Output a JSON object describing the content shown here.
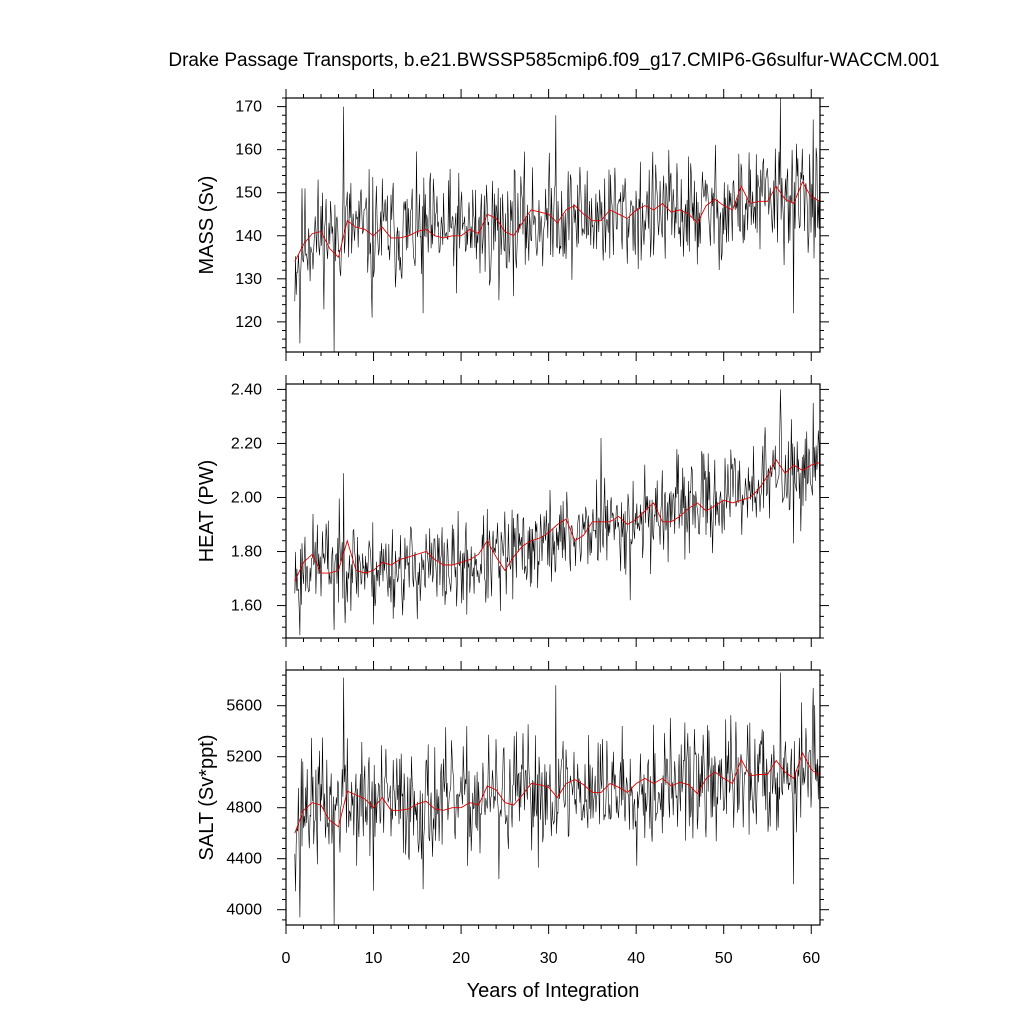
{
  "title": "Drake Passage Transports, b.e21.BWSSP585cmip6.f09_g17.CMIP6-G6sulfur-WACCM.001",
  "colors": {
    "monthly": "#000000",
    "annual": "#e00000"
  },
  "chart_data": [
    {
      "type": "line",
      "id": "mass",
      "ylabel": "MASS (Sv)",
      "xlabel": "",
      "xlim": [
        0,
        61
      ],
      "ylim": [
        113,
        172
      ],
      "xticks": [
        0,
        10,
        20,
        30,
        40,
        50,
        60
      ],
      "yticks": [
        120,
        130,
        140,
        150,
        160,
        170
      ],
      "ytick_labels": [
        "120",
        "130",
        "140",
        "150",
        "160",
        "170"
      ],
      "monthly_x_step": 0.0833,
      "monthly_x_start": 1.0,
      "monthly_noise": 6.5,
      "monthly_seed": 11,
      "monthly_trend": {
        "x": [
          1,
          2,
          6,
          10,
          20,
          30,
          40,
          50,
          60,
          61
        ],
        "y": [
          133,
          139,
          142,
          141,
          141,
          144,
          145,
          146,
          150,
          148
        ]
      },
      "monthly_spikes": [
        [
          1.6,
          115
        ],
        [
          5.5,
          113
        ],
        [
          6.6,
          170
        ],
        [
          9.8,
          121
        ],
        [
          15.7,
          122
        ],
        [
          24.3,
          125
        ],
        [
          30.8,
          168
        ],
        [
          56.5,
          172
        ],
        [
          58.0,
          122
        ],
        [
          60.2,
          167
        ]
      ],
      "annual": {
        "x": [
          1,
          2,
          3,
          4,
          5,
          6,
          7,
          8,
          9,
          10,
          11,
          12,
          13,
          14,
          15,
          16,
          17,
          18,
          19,
          20,
          21,
          22,
          23,
          24,
          25,
          26,
          27,
          28,
          29,
          30,
          31,
          32,
          33,
          34,
          35,
          36,
          37,
          38,
          39,
          40,
          41,
          42,
          43,
          44,
          45,
          46,
          47,
          48,
          49,
          50,
          51,
          52,
          53,
          54,
          55,
          56,
          57,
          58,
          59,
          60,
          61
        ],
        "y": [
          134,
          138,
          140.5,
          141,
          137,
          135,
          143.5,
          142,
          141.5,
          140,
          142,
          139.5,
          139.5,
          140,
          141,
          141.5,
          140,
          139.5,
          140,
          140,
          141.5,
          140.5,
          145,
          144,
          141,
          140,
          143,
          146,
          145.5,
          145,
          143,
          146,
          147,
          145,
          143.5,
          143.5,
          146,
          145,
          144,
          146,
          147,
          146,
          147.5,
          145.5,
          146,
          145,
          143,
          147,
          148.5,
          147,
          146,
          151.5,
          147.5,
          148,
          148,
          151.5,
          148.5,
          147.5,
          152.5,
          149,
          148
        ]
      }
    },
    {
      "type": "line",
      "id": "heat",
      "ylabel": "HEAT (PW)",
      "xlabel": "",
      "xlim": [
        0,
        61
      ],
      "ylim": [
        1.48,
        2.42
      ],
      "xticks": [
        0,
        10,
        20,
        30,
        40,
        50,
        60
      ],
      "yticks": [
        1.6,
        1.8,
        2.0,
        2.2,
        2.4
      ],
      "ytick_labels": [
        "1.60",
        "1.80",
        "2.00",
        "2.20",
        "2.40"
      ],
      "monthly_x_step": 0.0833,
      "monthly_x_start": 1.0,
      "monthly_noise": 0.085,
      "monthly_seed": 23,
      "monthly_trend": {
        "x": [
          1,
          2,
          6,
          10,
          20,
          25,
          30,
          40,
          50,
          57,
          61
        ],
        "y": [
          1.7,
          1.76,
          1.76,
          1.74,
          1.74,
          1.78,
          1.84,
          1.92,
          2.0,
          2.1,
          2.1
        ]
      },
      "monthly_spikes": [
        [
          1.6,
          1.49
        ],
        [
          5.5,
          1.51
        ],
        [
          6.6,
          2.09
        ],
        [
          10.0,
          1.53
        ],
        [
          24.5,
          1.58
        ],
        [
          36.0,
          2.22
        ],
        [
          39.3,
          1.62
        ],
        [
          56.5,
          2.4
        ],
        [
          58.0,
          1.83
        ],
        [
          60.2,
          2.35
        ]
      ],
      "annual": {
        "x": [
          1,
          2,
          3,
          4,
          5,
          6,
          7,
          8,
          9,
          10,
          11,
          12,
          13,
          14,
          15,
          16,
          17,
          18,
          19,
          20,
          21,
          22,
          23,
          24,
          25,
          26,
          27,
          28,
          29,
          30,
          31,
          32,
          33,
          34,
          35,
          36,
          37,
          38,
          39,
          40,
          41,
          42,
          43,
          44,
          45,
          46,
          47,
          48,
          49,
          50,
          51,
          52,
          53,
          54,
          55,
          56,
          57,
          58,
          59,
          60,
          61
        ],
        "y": [
          1.69,
          1.76,
          1.79,
          1.72,
          1.72,
          1.73,
          1.84,
          1.73,
          1.72,
          1.73,
          1.76,
          1.75,
          1.77,
          1.78,
          1.79,
          1.8,
          1.77,
          1.75,
          1.75,
          1.76,
          1.77,
          1.79,
          1.84,
          1.78,
          1.73,
          1.78,
          1.82,
          1.84,
          1.85,
          1.87,
          1.9,
          1.92,
          1.84,
          1.86,
          1.91,
          1.91,
          1.91,
          1.93,
          1.9,
          1.92,
          1.95,
          1.98,
          1.91,
          1.91,
          1.93,
          1.96,
          1.98,
          1.95,
          1.97,
          1.99,
          1.98,
          1.99,
          2.0,
          2.03,
          2.08,
          2.14,
          2.09,
          2.12,
          2.1,
          2.12,
          2.13
        ]
      }
    },
    {
      "type": "line",
      "id": "salt",
      "ylabel": "SALT (Sv*ppt)",
      "xlabel": "Years of Integration",
      "xlim": [
        0,
        61
      ],
      "ylim": [
        3880,
        5880
      ],
      "xticks": [
        0,
        10,
        20,
        30,
        40,
        50,
        60
      ],
      "xtick_labels": [
        "0",
        "10",
        "20",
        "30",
        "40",
        "50",
        "60"
      ],
      "yticks": [
        4000,
        4400,
        4800,
        5200,
        5600
      ],
      "ytick_labels": [
        "4000",
        "4400",
        "4800",
        "5200",
        "5600"
      ],
      "monthly_x_step": 0.0833,
      "monthly_x_start": 1.0,
      "monthly_noise": 230,
      "monthly_seed": 37,
      "monthly_trend": {
        "x": [
          1,
          2,
          6,
          10,
          20,
          30,
          40,
          50,
          60,
          61
        ],
        "y": [
          4650,
          4820,
          4850,
          4830,
          4840,
          4930,
          4970,
          5000,
          5120,
          5050
        ]
      },
      "monthly_spikes": [
        [
          1.6,
          3940
        ],
        [
          5.5,
          3880
        ],
        [
          6.6,
          5820
        ],
        [
          10.0,
          4150
        ],
        [
          15.7,
          4160
        ],
        [
          24.3,
          4240
        ],
        [
          30.8,
          5760
        ],
        [
          56.5,
          5860
        ],
        [
          58.0,
          4200
        ],
        [
          60.2,
          5740
        ]
      ],
      "annual": {
        "x": [
          1,
          2,
          3,
          4,
          5,
          6,
          7,
          8,
          9,
          10,
          11,
          12,
          13,
          14,
          15,
          16,
          17,
          18,
          19,
          20,
          21,
          22,
          23,
          24,
          25,
          26,
          27,
          28,
          29,
          30,
          31,
          32,
          33,
          34,
          35,
          36,
          37,
          38,
          39,
          40,
          41,
          42,
          43,
          44,
          45,
          46,
          47,
          48,
          49,
          50,
          51,
          52,
          53,
          54,
          55,
          56,
          57,
          58,
          59,
          60,
          61
        ],
        "y": [
          4600,
          4780,
          4840,
          4820,
          4700,
          4650,
          4930,
          4900,
          4870,
          4800,
          4880,
          4780,
          4780,
          4790,
          4830,
          4850,
          4790,
          4780,
          4800,
          4800,
          4840,
          4820,
          4970,
          4940,
          4840,
          4820,
          4900,
          4990,
          4980,
          4960,
          4880,
          4990,
          5020,
          4980,
          4920,
          4920,
          4990,
          4960,
          4920,
          4990,
          5030,
          4990,
          5030,
          4970,
          5000,
          4980,
          4910,
          5030,
          5080,
          5030,
          4990,
          5180,
          5050,
          5060,
          5060,
          5170,
          5080,
          5030,
          5230,
          5100,
          5050
        ]
      }
    }
  ]
}
